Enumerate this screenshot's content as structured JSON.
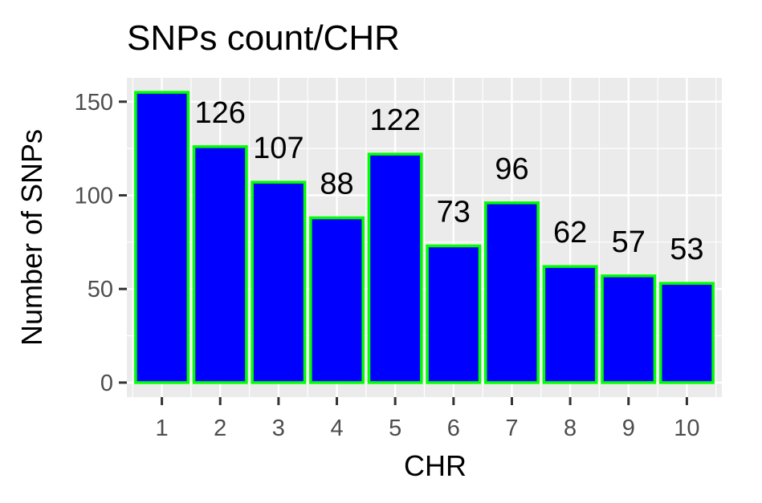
{
  "chart_data": {
    "type": "bar",
    "title": "SNPs count/CHR",
    "xlabel": "CHR",
    "ylabel": "Number of SNPs",
    "categories": [
      "1",
      "2",
      "3",
      "4",
      "5",
      "6",
      "7",
      "8",
      "9",
      "10"
    ],
    "values": [
      155,
      126,
      107,
      88,
      122,
      73,
      96,
      62,
      57,
      53
    ],
    "data_labels": [
      "",
      "126",
      "107",
      "88",
      "122",
      "73",
      "96",
      "62",
      "57",
      "53"
    ],
    "yticks": [
      0,
      50,
      100,
      150
    ],
    "ytick_labels": [
      "0",
      "50",
      "100",
      "150"
    ],
    "ylim": [
      -7.75,
      162.75
    ],
    "grid": true,
    "legend": "none",
    "colors": {
      "bar_fill": "#0000ff",
      "bar_outline": "#00ff00",
      "panel_background": "#ebebeb",
      "grid": "#ffffff"
    }
  }
}
